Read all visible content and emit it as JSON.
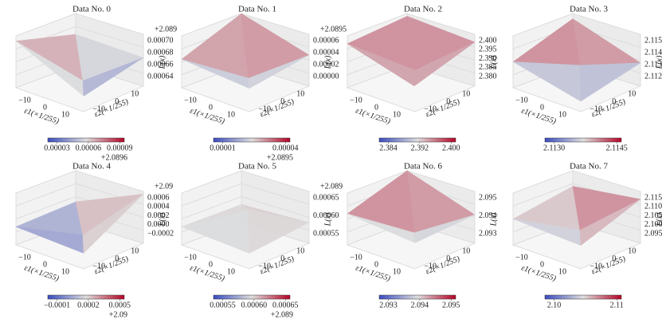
{
  "figure": {
    "panels": [
      {
        "title": "Data No. 0",
        "zticks": [
          "0.00070",
          "0.00068",
          "0.00066",
          "0.00064"
        ],
        "zoffset": "+2.089",
        "cbar_ticks": [
          "0.00003",
          "0.00006",
          "0.00009"
        ],
        "cbar_offset": "+2.0896"
      },
      {
        "title": "Data No. 1",
        "zticks": [
          "0.00006",
          "0.00004",
          "0.00002",
          "0.00000"
        ],
        "zoffset": "+2.0895",
        "cbar_ticks": [
          "0.00001",
          "0.00004"
        ],
        "cbar_offset": "+2.0895"
      },
      {
        "title": "Data No. 2",
        "zticks": [
          "2.400",
          "2.395",
          "2.390",
          "2.385",
          "2.380"
        ],
        "cbar_ticks": [
          "2.384",
          "2.392",
          "2.400"
        ]
      },
      {
        "title": "Data No. 3",
        "zticks": [
          "2.115",
          "2.114",
          "2.113",
          "2.112"
        ],
        "cbar_ticks": [
          "2.1130",
          "2.1145"
        ]
      },
      {
        "title": "Data No. 4",
        "zticks": [
          "0.0006",
          "0.0004",
          "0.0002",
          "0.0000",
          "−0.0002"
        ],
        "zoffset": "+2.09",
        "cbar_ticks": [
          "−0.0001",
          "0.0002",
          "0.0005"
        ],
        "cbar_offset": "+2.09"
      },
      {
        "title": "Data No. 5",
        "zticks": [
          "0.00065",
          "0.00060",
          "0.00055"
        ],
        "zoffset": "+2.089",
        "cbar_ticks": [
          "0.00055",
          "0.00060",
          "0.00065"
        ],
        "cbar_offset": "+2.089"
      },
      {
        "title": "Data No. 6",
        "zticks": [
          "2.095",
          "2.094",
          "2.093"
        ],
        "cbar_ticks": [
          "2.093",
          "2.094",
          "2.095"
        ]
      },
      {
        "title": "Data No. 7",
        "zticks": [
          "2.115",
          "2.110",
          "2.105",
          "2.100",
          "2.095"
        ],
        "cbar_ticks": [
          "2.10",
          "2.11"
        ]
      }
    ],
    "xticks": [
      "−10",
      "0",
      "10"
    ],
    "yticks": [
      "−10",
      "0",
      "10"
    ],
    "xlabel": "ε1(×1/255)",
    "ylabel": "ε2(×1/255)",
    "zlabel": "L(x)"
  }
}
